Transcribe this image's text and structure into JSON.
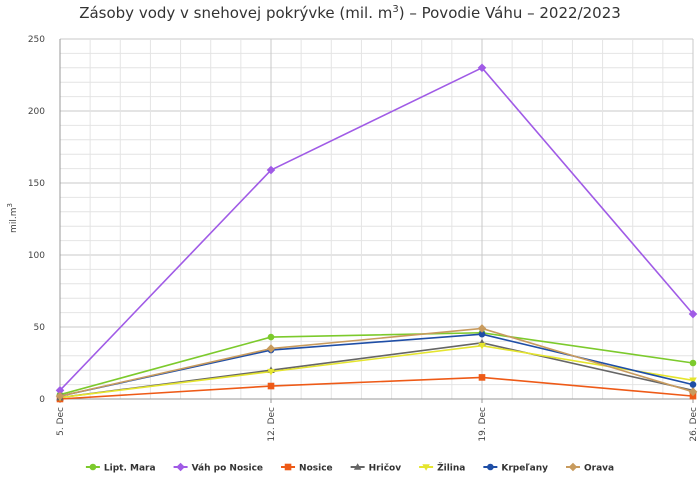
{
  "chart_data": {
    "type": "line",
    "title": "Zásoby vody v snehovej pokrývke (mil. m",
    "title_superscript": "3",
    "title_suffix": ") – Povodie Váhu – 2022/2023",
    "ylabel": "mil.m",
    "ylabel_superscript": "3",
    "xlabel": "",
    "ylim": [
      0,
      250
    ],
    "yticks": [
      0,
      50,
      100,
      150,
      200,
      250
    ],
    "grid": true,
    "legend_position": "bottom",
    "categories": [
      "5. Dec",
      "12. Dec",
      "19. Dec",
      "26. Dec"
    ],
    "series": [
      {
        "name": "Lipt. Mara",
        "color": "#7cca2c",
        "marker": "circle",
        "values": [
          3,
          43,
          46,
          25
        ]
      },
      {
        "name": "Váh po Nosice",
        "color": "#a05be6",
        "marker": "diamond",
        "values": [
          6,
          159,
          230,
          59
        ]
      },
      {
        "name": "Nosice",
        "color": "#ee5a17",
        "marker": "square",
        "values": [
          0,
          9,
          15,
          2
        ]
      },
      {
        "name": "Hričov",
        "color": "#666666",
        "marker": "triangle",
        "values": [
          1,
          20,
          39,
          6
        ]
      },
      {
        "name": "Žilina",
        "color": "#e5e52e",
        "marker": "triangle-down",
        "values": [
          1,
          19,
          37,
          13
        ]
      },
      {
        "name": "Krpeľany",
        "color": "#1f4ea6",
        "marker": "circle",
        "values": [
          2,
          34,
          45,
          10
        ]
      },
      {
        "name": "Orava",
        "color": "#c89b5e",
        "marker": "diamond",
        "values": [
          2,
          35,
          49,
          5
        ]
      }
    ]
  }
}
